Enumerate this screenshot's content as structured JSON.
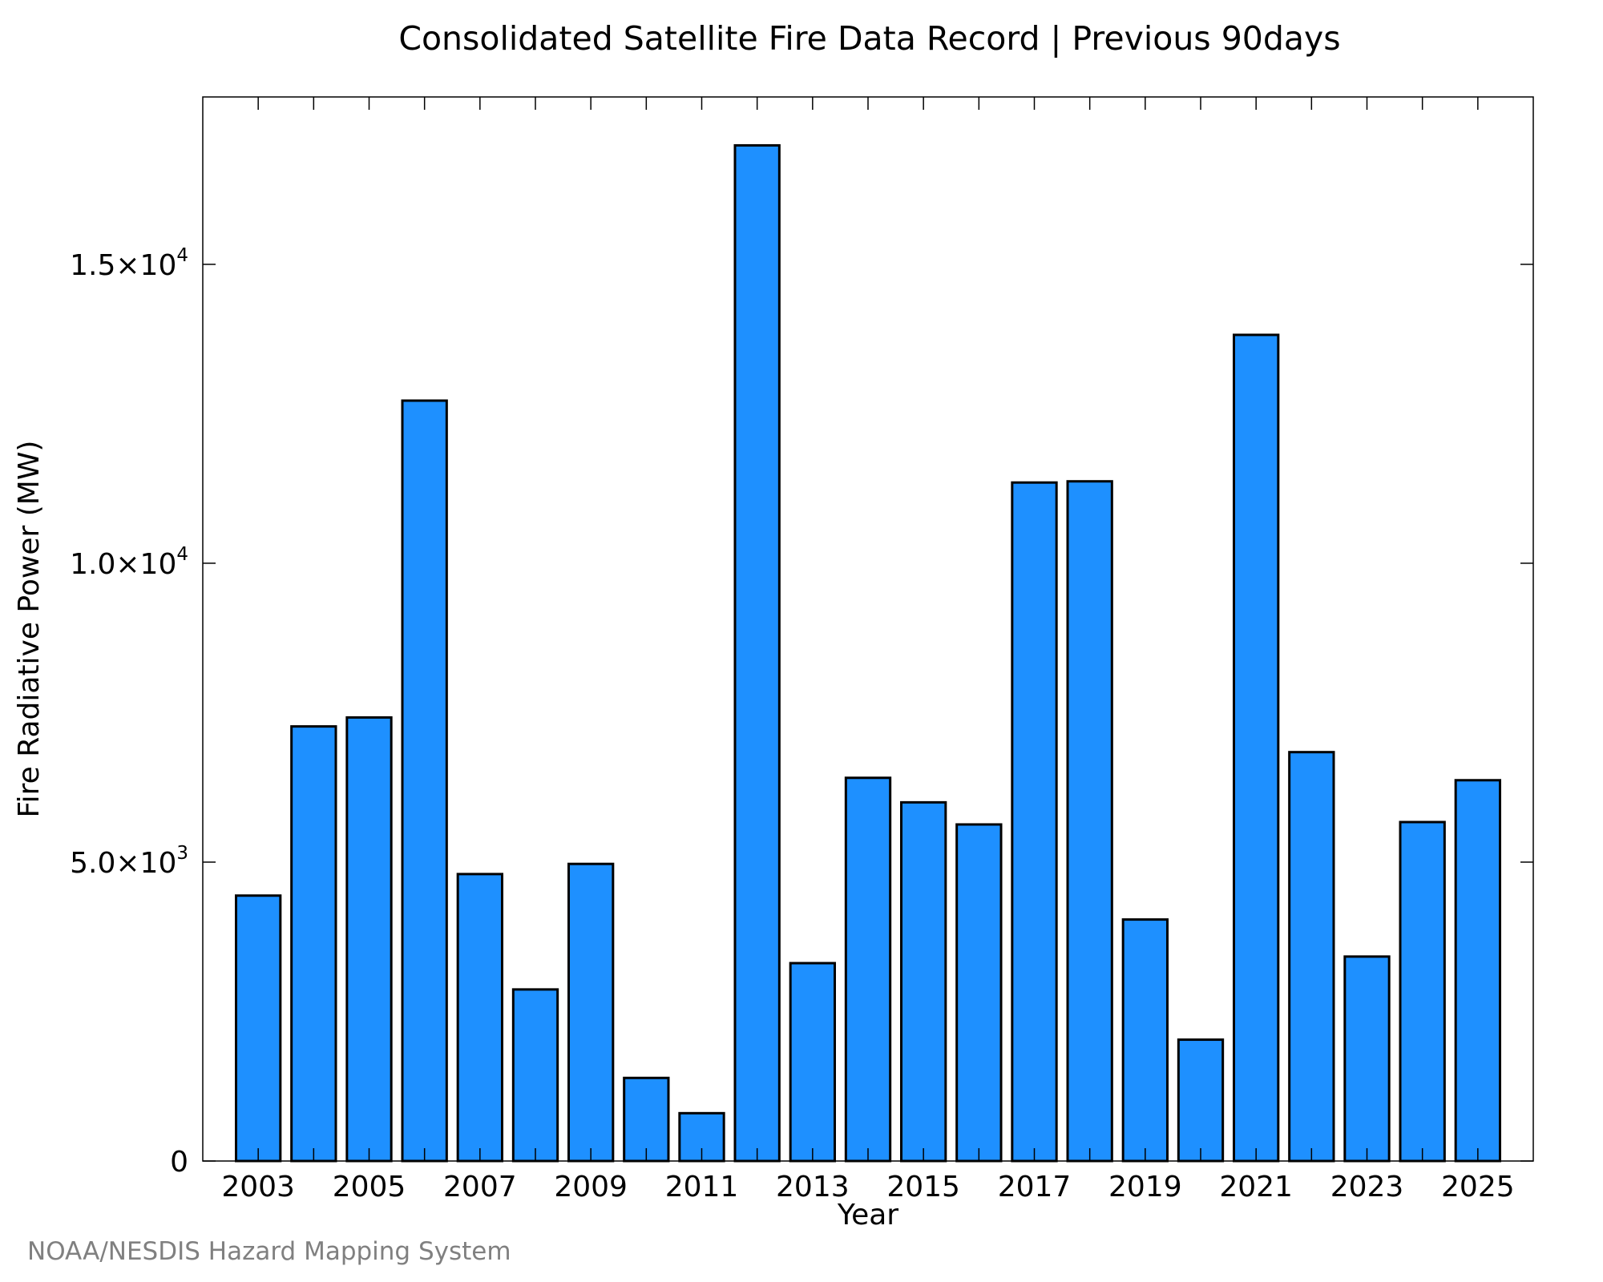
{
  "chart_data": {
    "type": "bar",
    "title": "Consolidated Satellite Fire Data Record | Previous 90days",
    "xlabel": "Year",
    "ylabel": "Fire Radiative Power (MW)",
    "categories": [
      "2003",
      "2004",
      "2005",
      "2006",
      "2007",
      "2008",
      "2009",
      "2010",
      "2011",
      "2012",
      "2013",
      "2014",
      "2015",
      "2016",
      "2017",
      "2018",
      "2019",
      "2020",
      "2021",
      "2022",
      "2023",
      "2024",
      "2025"
    ],
    "values": [
      4440,
      7270,
      7420,
      12720,
      4800,
      2870,
      4970,
      1390,
      800,
      16990,
      3310,
      6410,
      6000,
      5630,
      11350,
      11370,
      4040,
      2030,
      13820,
      6840,
      3420,
      5670,
      6370
    ],
    "x_tick_labels": [
      "2003",
      "2005",
      "2007",
      "2009",
      "2011",
      "2013",
      "2015",
      "2017",
      "2019",
      "2021",
      "2023",
      "2025"
    ],
    "y_ticks": [
      {
        "value": 0,
        "mantissa": "0",
        "exponent": ""
      },
      {
        "value": 5000,
        "mantissa": "5.0×10",
        "exponent": "3"
      },
      {
        "value": 10000,
        "mantissa": "1.0×10",
        "exponent": "4"
      },
      {
        "value": 15000,
        "mantissa": "1.5×10",
        "exponent": "4"
      }
    ],
    "ylim": [
      0,
      17800
    ],
    "xlim": [
      2002.0,
      2026.0
    ],
    "bar_color": "#1e90ff",
    "edge_color": "#000000",
    "grid": false,
    "legend": "none"
  },
  "credit": "NOAA/NESDIS Hazard Mapping System"
}
